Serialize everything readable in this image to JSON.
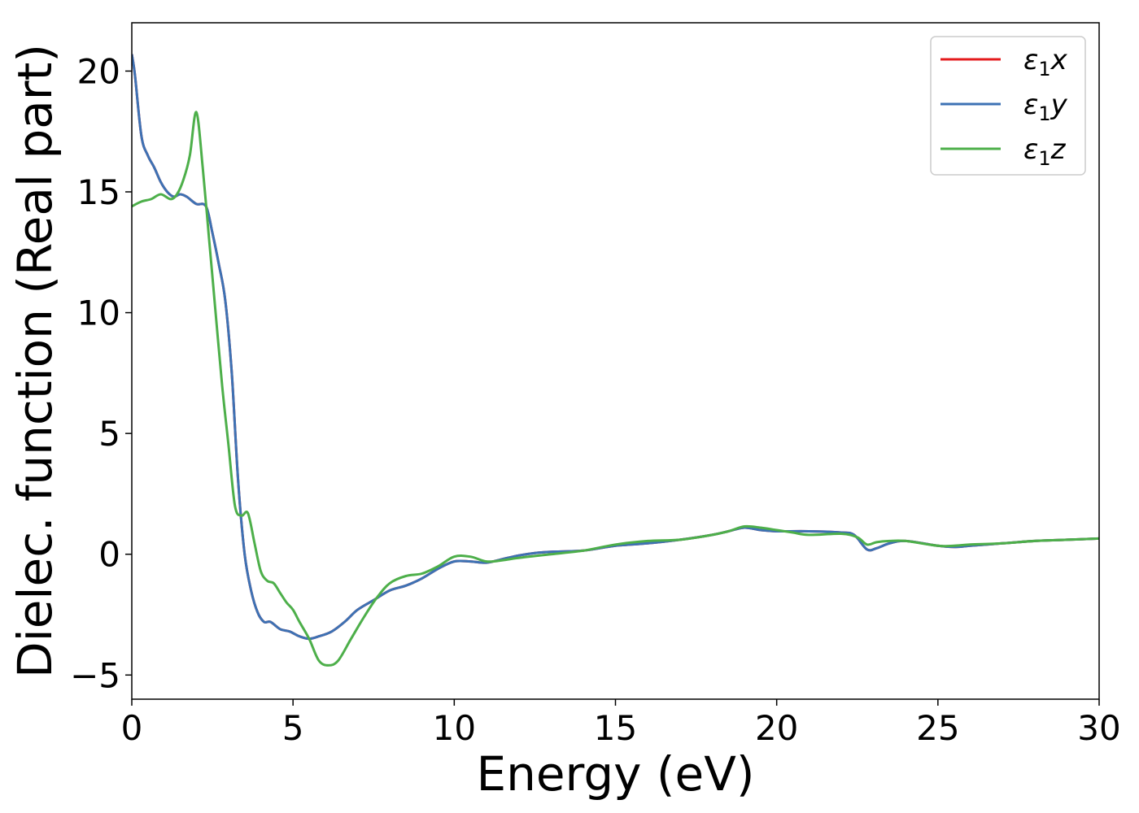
{
  "chart_data": {
    "type": "line",
    "xlabel": "Energy (eV)",
    "ylabel": "Dielec. function (Real part)",
    "xlim": [
      0,
      30
    ],
    "ylim": [
      -6,
      22
    ],
    "xticks": [
      0,
      5,
      10,
      15,
      20,
      25,
      30
    ],
    "xtick_labels": [
      "0",
      "5",
      "10",
      "15",
      "20",
      "25",
      "30"
    ],
    "yticks": [
      -5,
      0,
      5,
      10,
      15,
      20
    ],
    "ytick_labels": [
      "−5",
      "0",
      "5",
      "10",
      "15",
      "20"
    ],
    "grid": false,
    "legend_position": "top-right",
    "series": [
      {
        "name": "ε1x",
        "label_main": "ε",
        "label_sub": "1",
        "label_var": "x",
        "color": "#e41a1c",
        "x": [
          0,
          0.1,
          0.3,
          0.5,
          0.7,
          0.9,
          1.1,
          1.3,
          1.5,
          1.7,
          2.0,
          2.3,
          2.5,
          2.7,
          2.9,
          3.1,
          3.3,
          3.5,
          3.7,
          3.9,
          4.1,
          4.3,
          4.6,
          4.9,
          5.2,
          5.5,
          5.8,
          6.2,
          6.6,
          7.0,
          7.5,
          8.0,
          8.5,
          9.0,
          9.5,
          10.0,
          10.5,
          11.0,
          11.5,
          12.0,
          12.5,
          13.0,
          14.0,
          15.0,
          16.0,
          17.0,
          18.0,
          18.5,
          19.0,
          19.5,
          20.0,
          21.0,
          22.0,
          22.4,
          22.8,
          23.1,
          23.5,
          24.0,
          25.0,
          25.5,
          26.0,
          27.0,
          28.0,
          29.0,
          30.0
        ],
        "values": [
          20.7,
          19.8,
          17.3,
          16.5,
          16.0,
          15.4,
          15.0,
          14.8,
          14.9,
          14.8,
          14.5,
          14.4,
          13.3,
          12.0,
          10.5,
          7.5,
          3.0,
          0.0,
          -1.5,
          -2.4,
          -2.8,
          -2.8,
          -3.1,
          -3.2,
          -3.4,
          -3.5,
          -3.4,
          -3.2,
          -2.8,
          -2.3,
          -1.9,
          -1.5,
          -1.3,
          -1.0,
          -0.6,
          -0.3,
          -0.3,
          -0.35,
          -0.2,
          -0.05,
          0.05,
          0.1,
          0.15,
          0.35,
          0.45,
          0.6,
          0.8,
          0.95,
          1.1,
          1.0,
          0.95,
          0.95,
          0.9,
          0.8,
          0.2,
          0.25,
          0.45,
          0.55,
          0.35,
          0.3,
          0.35,
          0.45,
          0.55,
          0.6,
          0.65
        ]
      },
      {
        "name": "ε1y",
        "label_main": "ε",
        "label_sub": "1",
        "label_var": "y",
        "color": "#3d72b4",
        "x": [
          0,
          0.1,
          0.3,
          0.5,
          0.7,
          0.9,
          1.1,
          1.3,
          1.5,
          1.7,
          2.0,
          2.3,
          2.5,
          2.7,
          2.9,
          3.1,
          3.3,
          3.5,
          3.7,
          3.9,
          4.1,
          4.3,
          4.6,
          4.9,
          5.2,
          5.5,
          5.8,
          6.2,
          6.6,
          7.0,
          7.5,
          8.0,
          8.5,
          9.0,
          9.5,
          10.0,
          10.5,
          11.0,
          11.5,
          12.0,
          12.5,
          13.0,
          14.0,
          15.0,
          16.0,
          17.0,
          18.0,
          18.5,
          19.0,
          19.5,
          20.0,
          21.0,
          22.0,
          22.4,
          22.8,
          23.1,
          23.5,
          24.0,
          25.0,
          25.5,
          26.0,
          27.0,
          28.0,
          29.0,
          30.0
        ],
        "values": [
          20.7,
          19.8,
          17.3,
          16.5,
          16.0,
          15.4,
          15.0,
          14.8,
          14.9,
          14.8,
          14.5,
          14.4,
          13.3,
          12.0,
          10.5,
          7.5,
          3.0,
          0.0,
          -1.5,
          -2.4,
          -2.8,
          -2.8,
          -3.1,
          -3.2,
          -3.4,
          -3.5,
          -3.4,
          -3.2,
          -2.8,
          -2.3,
          -1.9,
          -1.5,
          -1.3,
          -1.0,
          -0.6,
          -0.3,
          -0.3,
          -0.35,
          -0.2,
          -0.05,
          0.05,
          0.1,
          0.15,
          0.35,
          0.45,
          0.6,
          0.8,
          0.95,
          1.1,
          1.0,
          0.95,
          0.95,
          0.9,
          0.8,
          0.2,
          0.25,
          0.45,
          0.55,
          0.35,
          0.3,
          0.35,
          0.45,
          0.55,
          0.6,
          0.65
        ]
      },
      {
        "name": "ε1z",
        "label_main": "ε",
        "label_sub": "1",
        "label_var": "z",
        "color": "#4daf4a",
        "x": [
          0,
          0.3,
          0.6,
          0.9,
          1.2,
          1.4,
          1.6,
          1.8,
          2.0,
          2.2,
          2.4,
          2.6,
          2.8,
          3.0,
          3.2,
          3.4,
          3.6,
          3.8,
          4.0,
          4.2,
          4.4,
          4.6,
          4.8,
          5.0,
          5.2,
          5.5,
          5.8,
          6.1,
          6.4,
          6.8,
          7.2,
          7.6,
          8.0,
          8.5,
          9.0,
          9.5,
          10.0,
          10.5,
          11.0,
          11.5,
          12.0,
          13.0,
          14.0,
          15.0,
          16.0,
          17.0,
          18.0,
          18.5,
          19.0,
          19.5,
          20.0,
          20.5,
          21.0,
          22.0,
          22.5,
          22.8,
          23.1,
          23.5,
          24.0,
          25.0,
          25.5,
          26.0,
          27.0,
          28.0,
          29.0,
          30.0
        ],
        "values": [
          14.4,
          14.6,
          14.7,
          14.9,
          14.7,
          14.9,
          15.5,
          16.5,
          18.3,
          16.0,
          13.0,
          10.0,
          7.0,
          4.5,
          2.0,
          1.6,
          1.7,
          0.5,
          -0.7,
          -1.1,
          -1.2,
          -1.6,
          -2.0,
          -2.3,
          -2.8,
          -3.5,
          -4.4,
          -4.6,
          -4.4,
          -3.5,
          -2.6,
          -1.8,
          -1.2,
          -0.9,
          -0.8,
          -0.5,
          -0.1,
          -0.1,
          -0.3,
          -0.25,
          -0.15,
          0.0,
          0.15,
          0.4,
          0.55,
          0.6,
          0.8,
          0.95,
          1.15,
          1.1,
          1.0,
          0.9,
          0.8,
          0.85,
          0.7,
          0.4,
          0.5,
          0.55,
          0.55,
          0.35,
          0.35,
          0.4,
          0.45,
          0.55,
          0.6,
          0.65
        ]
      }
    ]
  }
}
